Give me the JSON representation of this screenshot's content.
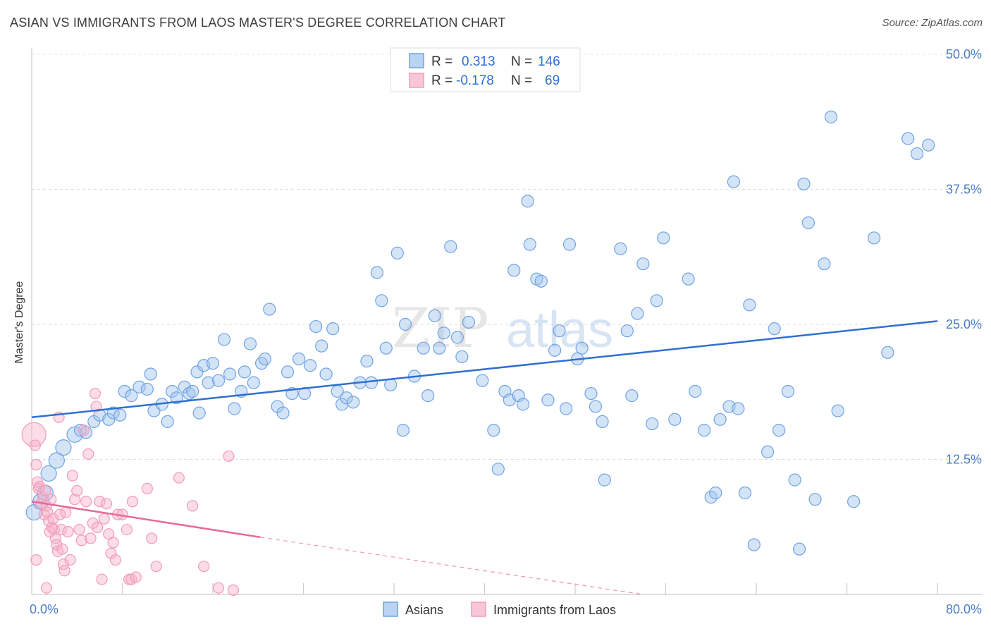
{
  "title": "ASIAN VS IMMIGRANTS FROM LAOS MASTER'S DEGREE CORRELATION CHART",
  "source": "Source: ZipAtlas.com",
  "watermark": {
    "zip": "ZIP",
    "atlas": "atlas"
  },
  "chart_data": {
    "type": "scatter",
    "ylabel": "Master's Degree",
    "xlim": [
      0,
      80
    ],
    "ylim": [
      0,
      50
    ],
    "x_tick_labels": [
      "0.0%",
      "80.0%"
    ],
    "y_tick_labels": [
      "12.5%",
      "25.0%",
      "37.5%",
      "50.0%"
    ],
    "y_ticks": [
      12.5,
      25,
      37.5,
      50
    ],
    "grid": true,
    "legend_placement": "bottom",
    "stats": [
      {
        "r_label": "R =",
        "r_value": "0.313",
        "n_label": "N =",
        "n_value": "146"
      },
      {
        "r_label": "R =",
        "r_value": "-0.178",
        "n_label": "N =",
        "n_value": "69"
      }
    ],
    "series": [
      {
        "name": "Asians",
        "color": "#6fa3e3",
        "line_color": "#2f6fd1",
        "trend": {
          "x0": 0,
          "y0": 16.4,
          "x1": 80,
          "y1": 25.3
        },
        "points": [
          [
            0.2,
            7.6
          ],
          [
            0.8,
            8.6
          ],
          [
            1.2,
            9.4
          ],
          [
            1.5,
            11.2
          ],
          [
            2.2,
            12.4
          ],
          [
            2.8,
            13.6
          ],
          [
            3.8,
            14.8
          ],
          [
            4.3,
            15.2
          ],
          [
            4.8,
            15.0
          ],
          [
            5.5,
            16.0
          ],
          [
            6.0,
            16.6
          ],
          [
            6.8,
            16.2
          ],
          [
            7.2,
            16.8
          ],
          [
            7.8,
            16.6
          ],
          [
            8.2,
            18.8
          ],
          [
            8.8,
            18.4
          ],
          [
            9.5,
            19.2
          ],
          [
            10.2,
            19.0
          ],
          [
            10.5,
            20.4
          ],
          [
            10.8,
            17.0
          ],
          [
            11.5,
            17.6
          ],
          [
            12.0,
            16.0
          ],
          [
            12.4,
            18.8
          ],
          [
            12.8,
            18.2
          ],
          [
            13.5,
            19.2
          ],
          [
            13.9,
            18.6
          ],
          [
            14.2,
            18.8
          ],
          [
            14.6,
            20.6
          ],
          [
            14.8,
            16.8
          ],
          [
            15.2,
            21.2
          ],
          [
            15.6,
            19.6
          ],
          [
            16.0,
            21.4
          ],
          [
            16.5,
            19.8
          ],
          [
            17.0,
            23.6
          ],
          [
            17.5,
            20.4
          ],
          [
            17.9,
            17.2
          ],
          [
            18.5,
            18.8
          ],
          [
            18.8,
            20.6
          ],
          [
            19.3,
            23.2
          ],
          [
            19.6,
            19.6
          ],
          [
            20.3,
            21.4
          ],
          [
            20.6,
            21.8
          ],
          [
            21.0,
            26.4
          ],
          [
            21.7,
            17.4
          ],
          [
            22.2,
            16.8
          ],
          [
            22.6,
            20.6
          ],
          [
            23.0,
            18.6
          ],
          [
            23.6,
            21.8
          ],
          [
            24.1,
            18.6
          ],
          [
            24.6,
            21.2
          ],
          [
            25.1,
            24.8
          ],
          [
            25.6,
            23.0
          ],
          [
            26.0,
            20.4
          ],
          [
            26.6,
            24.6
          ],
          [
            27.0,
            18.8
          ],
          [
            27.4,
            17.6
          ],
          [
            27.8,
            18.2
          ],
          [
            28.4,
            17.8
          ],
          [
            29.0,
            19.6
          ],
          [
            29.6,
            21.6
          ],
          [
            30.0,
            19.6
          ],
          [
            30.5,
            29.8
          ],
          [
            30.9,
            27.2
          ],
          [
            31.3,
            22.8
          ],
          [
            31.7,
            19.4
          ],
          [
            32.3,
            31.6
          ],
          [
            32.8,
            15.2
          ],
          [
            33.0,
            25.0
          ],
          [
            33.8,
            20.2
          ],
          [
            34.6,
            22.8
          ],
          [
            35.0,
            18.4
          ],
          [
            35.6,
            25.8
          ],
          [
            36.0,
            22.8
          ],
          [
            36.4,
            24.2
          ],
          [
            37.0,
            32.2
          ],
          [
            37.6,
            23.8
          ],
          [
            38.0,
            22.0
          ],
          [
            38.6,
            25.2
          ],
          [
            39.8,
            19.8
          ],
          [
            40.8,
            15.2
          ],
          [
            41.2,
            11.6
          ],
          [
            41.8,
            18.8
          ],
          [
            42.2,
            18.0
          ],
          [
            42.6,
            30.0
          ],
          [
            43.0,
            18.4
          ],
          [
            43.4,
            17.6
          ],
          [
            43.8,
            36.4
          ],
          [
            44.0,
            32.4
          ],
          [
            44.6,
            29.2
          ],
          [
            45.0,
            29.0
          ],
          [
            45.6,
            18.0
          ],
          [
            46.2,
            22.6
          ],
          [
            46.6,
            24.4
          ],
          [
            47.2,
            17.2
          ],
          [
            47.5,
            32.4
          ],
          [
            48.2,
            21.8
          ],
          [
            48.6,
            22.8
          ],
          [
            49.4,
            18.6
          ],
          [
            49.8,
            17.4
          ],
          [
            50.4,
            16.0
          ],
          [
            50.6,
            10.6
          ],
          [
            52.0,
            32.0
          ],
          [
            52.6,
            24.4
          ],
          [
            53.0,
            18.4
          ],
          [
            53.5,
            26.0
          ],
          [
            54.0,
            30.6
          ],
          [
            54.8,
            15.8
          ],
          [
            55.2,
            27.2
          ],
          [
            55.8,
            33.0
          ],
          [
            56.8,
            16.2
          ],
          [
            58.0,
            29.2
          ],
          [
            58.6,
            18.8
          ],
          [
            59.4,
            15.2
          ],
          [
            60.0,
            9.0
          ],
          [
            60.4,
            9.4
          ],
          [
            60.8,
            16.2
          ],
          [
            61.6,
            17.4
          ],
          [
            62.0,
            38.2
          ],
          [
            62.4,
            17.2
          ],
          [
            63.0,
            9.4
          ],
          [
            63.4,
            26.8
          ],
          [
            63.8,
            4.6
          ],
          [
            65.0,
            13.2
          ],
          [
            65.6,
            24.6
          ],
          [
            66.0,
            15.2
          ],
          [
            66.8,
            18.8
          ],
          [
            67.4,
            10.6
          ],
          [
            67.8,
            4.2
          ],
          [
            68.2,
            38.0
          ],
          [
            68.6,
            34.4
          ],
          [
            69.2,
            8.8
          ],
          [
            70.0,
            30.6
          ],
          [
            70.6,
            44.2
          ],
          [
            71.2,
            17.0
          ],
          [
            72.6,
            8.6
          ],
          [
            74.4,
            33.0
          ],
          [
            75.6,
            22.4
          ],
          [
            77.4,
            42.2
          ],
          [
            78.2,
            40.8
          ],
          [
            79.2,
            41.6
          ]
        ]
      },
      {
        "name": "Immigrants from Laos",
        "color": "#f29bb8",
        "line_color": "#e76a96",
        "trend": {
          "x0": 0,
          "y0": 8.6,
          "x1": 20.2,
          "y1": 5.3
        },
        "trend_dashed_to": {
          "x": 54.0,
          "y": 0
        },
        "points": [
          [
            0.2,
            14.8
          ],
          [
            0.3,
            13.8
          ],
          [
            0.4,
            12.0
          ],
          [
            0.5,
            10.4
          ],
          [
            0.6,
            9.8
          ],
          [
            0.7,
            10.0
          ],
          [
            0.8,
            8.4
          ],
          [
            1.0,
            9.0
          ],
          [
            1.1,
            7.4
          ],
          [
            1.2,
            9.6
          ],
          [
            1.3,
            8.2
          ],
          [
            1.4,
            7.6
          ],
          [
            1.5,
            6.8
          ],
          [
            1.6,
            5.8
          ],
          [
            1.7,
            8.8
          ],
          [
            1.8,
            6.2
          ],
          [
            1.9,
            7.0
          ],
          [
            2.0,
            6.0
          ],
          [
            2.1,
            5.2
          ],
          [
            2.2,
            4.6
          ],
          [
            2.3,
            4.0
          ],
          [
            2.4,
            16.4
          ],
          [
            2.5,
            7.4
          ],
          [
            2.6,
            6.0
          ],
          [
            2.7,
            4.2
          ],
          [
            2.8,
            2.8
          ],
          [
            2.9,
            2.2
          ],
          [
            3.0,
            7.6
          ],
          [
            3.2,
            5.8
          ],
          [
            3.4,
            3.2
          ],
          [
            3.6,
            11.0
          ],
          [
            3.8,
            8.8
          ],
          [
            4.0,
            9.6
          ],
          [
            4.2,
            6.0
          ],
          [
            4.4,
            5.0
          ],
          [
            4.6,
            15.2
          ],
          [
            4.8,
            8.6
          ],
          [
            5.0,
            13.0
          ],
          [
            5.2,
            5.2
          ],
          [
            5.4,
            6.6
          ],
          [
            5.6,
            18.6
          ],
          [
            5.7,
            17.4
          ],
          [
            5.8,
            6.2
          ],
          [
            6.0,
            8.6
          ],
          [
            6.2,
            1.4
          ],
          [
            6.4,
            7.0
          ],
          [
            6.6,
            8.4
          ],
          [
            6.8,
            5.6
          ],
          [
            7.0,
            3.8
          ],
          [
            7.2,
            4.8
          ],
          [
            7.4,
            3.2
          ],
          [
            7.6,
            7.4
          ],
          [
            8.0,
            7.4
          ],
          [
            8.4,
            6.0
          ],
          [
            8.6,
            1.4
          ],
          [
            8.8,
            1.4
          ],
          [
            8.9,
            8.6
          ],
          [
            9.2,
            1.6
          ],
          [
            10.2,
            9.8
          ],
          [
            10.6,
            5.2
          ],
          [
            11.0,
            2.6
          ],
          [
            13.0,
            10.8
          ],
          [
            14.2,
            8.2
          ],
          [
            15.2,
            2.6
          ],
          [
            17.4,
            12.8
          ],
          [
            17.8,
            0.4
          ],
          [
            0.4,
            3.2
          ],
          [
            1.3,
            0.6
          ],
          [
            16.5,
            0.6
          ]
        ]
      }
    ]
  }
}
